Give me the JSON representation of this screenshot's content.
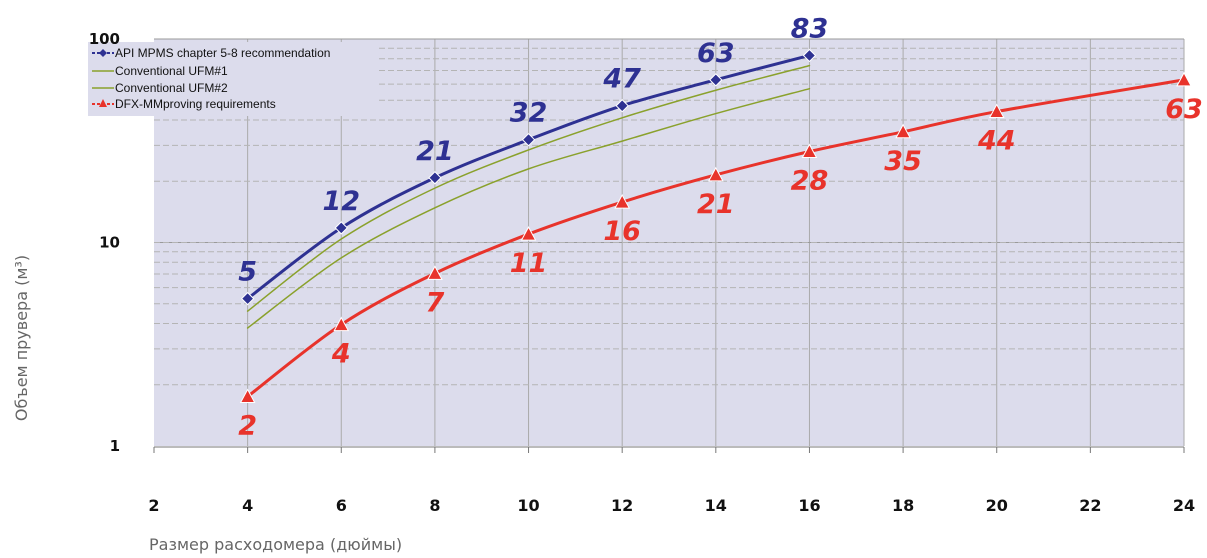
{
  "chart_data": {
    "type": "line",
    "xlabel": "Размер расходомера (дюймы)",
    "ylabel": "Объем прувера (м³)",
    "x_ticks": [
      "2",
      "4",
      "6",
      "8",
      "10",
      "12",
      "14",
      "16",
      "18",
      "20",
      "22",
      "24"
    ],
    "y_ticks": [
      "1",
      "10",
      "100"
    ],
    "xlim": [
      2,
      24
    ],
    "ylim": [
      1,
      100
    ],
    "y_scale": "log",
    "grid": true,
    "legend_position": "top-left",
    "series": [
      {
        "name": "API MPMS chapter 5-8 recommendation",
        "color": "#2e3192",
        "marker": "diamond",
        "x": [
          4,
          6,
          8,
          10,
          12,
          14,
          16
        ],
        "values": [
          5.3,
          11.8,
          20.8,
          32,
          47,
          63,
          83
        ],
        "labels": [
          "5",
          "12",
          "21",
          "32",
          "47",
          "63",
          "83"
        ]
      },
      {
        "name": "Conventional UFM#1",
        "color": "#8aa12c",
        "marker": "none",
        "x": [
          4,
          6,
          8,
          10,
          12,
          14,
          16
        ],
        "values": [
          4.6,
          10.4,
          18.5,
          28.5,
          41,
          56,
          74
        ]
      },
      {
        "name": "Conventional UFM#2",
        "color": "#8aa12c",
        "marker": "none",
        "x": [
          4,
          6,
          8,
          10,
          12,
          14,
          16
        ],
        "values": [
          3.8,
          8.4,
          14.8,
          23,
          31.5,
          43,
          57
        ]
      },
      {
        "name": "DFX-MMproving requirements",
        "color": "#e8332b",
        "marker": "triangle",
        "x": [
          4,
          6,
          8,
          10,
          12,
          14,
          16,
          18,
          20,
          22,
          24
        ],
        "values": [
          1.75,
          3.95,
          7.05,
          11,
          15.8,
          21.5,
          28,
          35,
          44,
          null,
          63
        ],
        "labels": [
          "2",
          "4",
          "7",
          "11",
          "16",
          "21",
          "28",
          "35",
          "44",
          null,
          "63"
        ]
      }
    ]
  }
}
